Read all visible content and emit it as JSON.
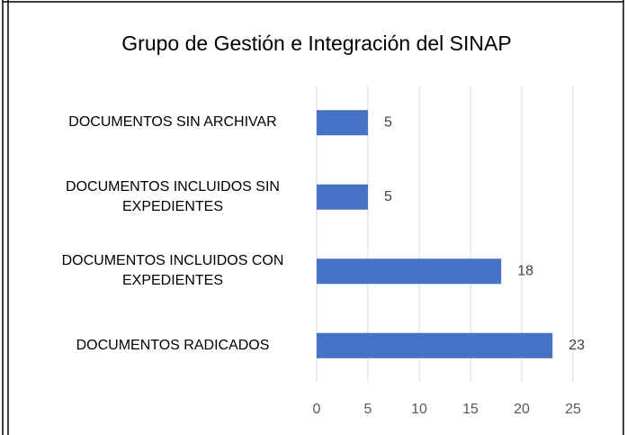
{
  "chart_data": {
    "type": "bar",
    "orientation": "horizontal",
    "title": "Grupo de Gestión e Integración del SINAP",
    "categories": [
      "DOCUMENTOS SIN ARCHIVAR",
      "DOCUMENTOS INCLUIDOS SIN EXPEDIENTES",
      "DOCUMENTOS INCLUIDOS CON EXPEDIENTES",
      "DOCUMENTOS RADICADOS"
    ],
    "values": [
      5,
      5,
      18,
      23
    ],
    "color": "#4472c4",
    "xlim": [
      0,
      25
    ],
    "xticks": [
      0,
      5,
      10,
      15,
      20,
      25
    ],
    "grid": true
  }
}
